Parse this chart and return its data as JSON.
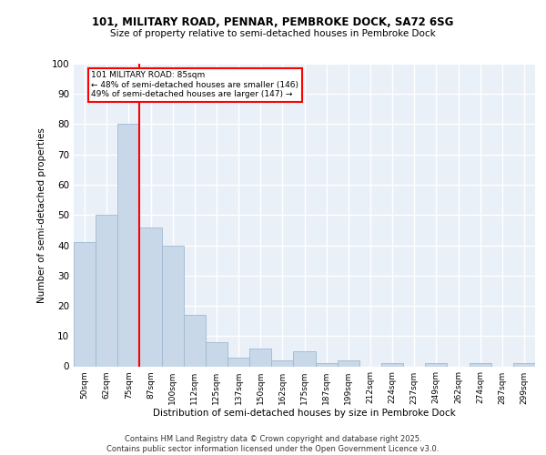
{
  "title1": "101, MILITARY ROAD, PENNAR, PEMBROKE DOCK, SA72 6SG",
  "title2": "Size of property relative to semi-detached houses in Pembroke Dock",
  "xlabel": "Distribution of semi-detached houses by size in Pembroke Dock",
  "ylabel": "Number of semi-detached properties",
  "categories": [
    "50sqm",
    "62sqm",
    "75sqm",
    "87sqm",
    "100sqm",
    "112sqm",
    "125sqm",
    "137sqm",
    "150sqm",
    "162sqm",
    "175sqm",
    "187sqm",
    "199sqm",
    "212sqm",
    "224sqm",
    "237sqm",
    "249sqm",
    "262sqm",
    "274sqm",
    "287sqm",
    "299sqm"
  ],
  "values": [
    41,
    50,
    80,
    46,
    40,
    17,
    8,
    3,
    6,
    2,
    5,
    1,
    2,
    0,
    1,
    0,
    1,
    0,
    1,
    0,
    1
  ],
  "bar_color": "#c8d8e8",
  "bar_edge_color": "#a0b8d0",
  "ylim": [
    0,
    100
  ],
  "yticks": [
    0,
    10,
    20,
    30,
    40,
    50,
    60,
    70,
    80,
    90,
    100
  ],
  "property_label": "101 MILITARY ROAD: 85sqm",
  "annotation_line1": "← 48% of semi-detached houses are smaller (146)",
  "annotation_line2": "49% of semi-detached houses are larger (147) →",
  "red_line_x": 2.5,
  "background_color": "#eaf0f8",
  "footer": "Contains HM Land Registry data © Crown copyright and database right 2025.\nContains public sector information licensed under the Open Government Licence v3.0."
}
